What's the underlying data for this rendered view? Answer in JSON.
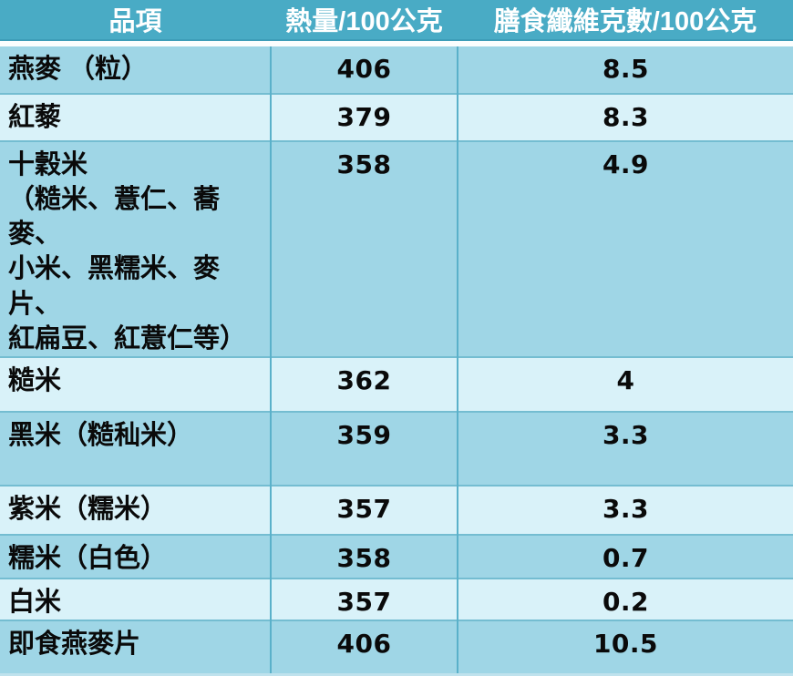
{
  "chart_data": {
    "type": "table",
    "title": "",
    "columns": [
      "品項",
      "熱量/100公克",
      "膳食纖維克數/100公克"
    ],
    "column_meanings": [
      "item name",
      "calories per 100 g",
      "dietary fiber grams per 100 g"
    ],
    "rows": [
      [
        "燕麥 （粒）",
        406,
        8.5
      ],
      [
        "紅藜",
        379,
        8.3
      ],
      [
        "十穀米\n（糙米、薏仁、蕎麥、\n小米、黑糯米、麥片、\n紅扁豆、紅薏仁等）",
        358,
        4.9
      ],
      [
        "糙米",
        362,
        4
      ],
      [
        "黑米（糙秈米）",
        359,
        3.3
      ],
      [
        "紫米（糯米）",
        357,
        3.3
      ],
      [
        "糯米（白色）",
        358,
        0.7
      ],
      [
        "白米",
        357,
        0.2
      ],
      [
        "即食燕麥片",
        406,
        10.5
      ]
    ]
  },
  "colors": {
    "header_bg": "#49ABC5",
    "header_text": "#FFFFFF",
    "band_dark": "#9FD6E6",
    "band_light": "#D9F2F9",
    "grid_h": "#74BDD1",
    "grid_v": "#5AB1CA",
    "header_sep_white": "#FBFEFE",
    "header_sep_dark": "#3D9DB8",
    "bottom_edge": "#BFE2ED",
    "body_text": "#0A0A0A"
  }
}
